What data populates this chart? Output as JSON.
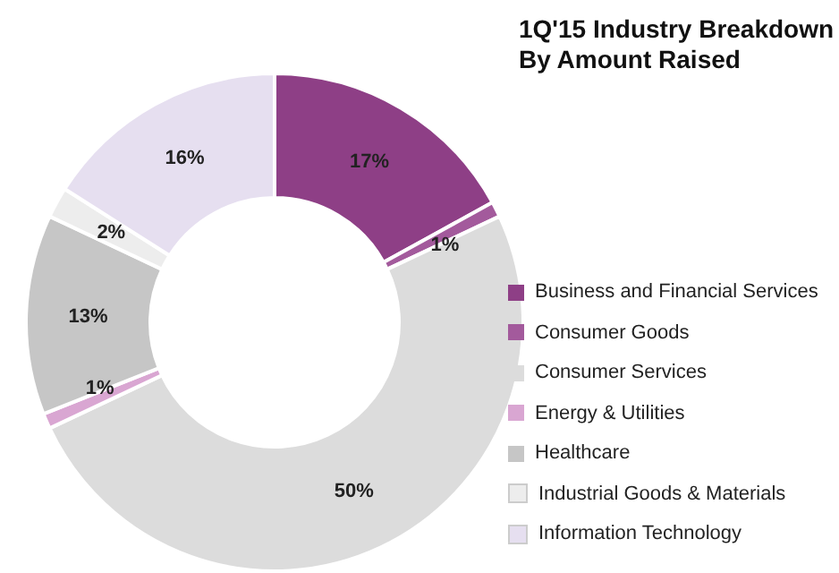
{
  "chart_data": {
    "type": "donut",
    "title": "1Q'15 Industry Breakdown\nBy Amount Raised",
    "categories": [
      "Business and Financial Services",
      "Consumer Goods",
      "Consumer Services",
      "Energy & Utilities",
      "Healthcare",
      "Industrial Goods & Materials",
      "Information Technology"
    ],
    "values": [
      17,
      1,
      50,
      1,
      13,
      2,
      16
    ],
    "colors": [
      "#8e3f86",
      "#a35a9c",
      "#dcdcdc",
      "#d9a6d2",
      "#c6c6c6",
      "#ededed",
      "#e6dff0"
    ],
    "value_labels": [
      "17%",
      "1%",
      "50%",
      "1%",
      "13%",
      "2%",
      "16%"
    ],
    "legend": "right"
  }
}
